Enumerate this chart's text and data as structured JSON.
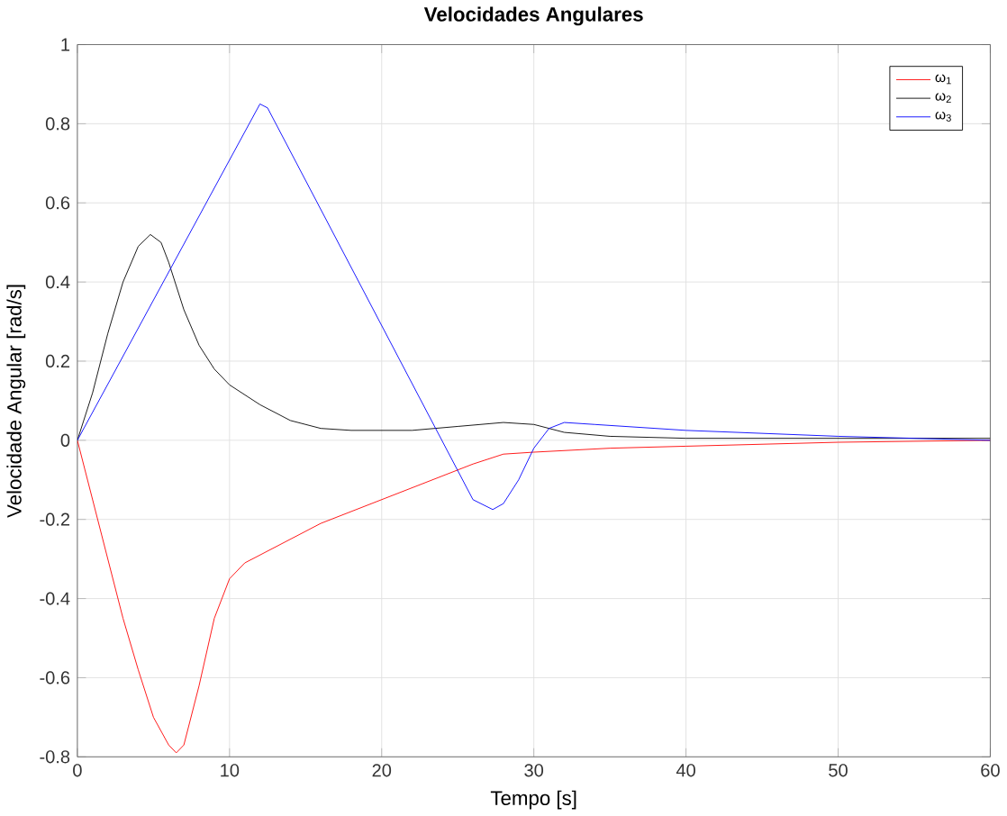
{
  "chart_data": {
    "type": "line",
    "title": "**Velocidades Angulares**",
    "xlabel": "Tempo [s]",
    "ylabel": "Velocidade Angular [rad/s]",
    "xlim": [
      0,
      60
    ],
    "ylim": [
      -0.8,
      1
    ],
    "xticks": [
      0,
      10,
      20,
      30,
      40,
      50,
      60
    ],
    "yticks": [
      -0.8,
      -0.6,
      -0.4,
      -0.2,
      0,
      0.2,
      0.4,
      0.6,
      0.8,
      1
    ],
    "grid": true,
    "legend": "top right",
    "series": [
      {
        "name": "ω$_{1}$",
        "color": "#ff0000",
        "x": [
          0,
          1,
          2,
          3,
          4,
          5,
          6,
          6.5,
          7,
          8,
          9,
          10,
          11,
          12,
          14,
          16,
          18,
          20,
          22,
          24,
          26,
          28,
          30,
          35,
          40,
          50,
          60
        ],
        "values": [
          0,
          -0.15,
          -0.3,
          -0.45,
          -0.58,
          -0.7,
          -0.77,
          -0.79,
          -0.77,
          -0.62,
          -0.45,
          -0.35,
          -0.31,
          -0.29,
          -0.25,
          -0.21,
          -0.18,
          -0.15,
          -0.12,
          -0.09,
          -0.06,
          -0.035,
          -0.03,
          -0.02,
          -0.015,
          -0.005,
          0
        ]
      },
      {
        "name": "ω$_{2}$",
        "color": "#000000",
        "x": [
          0,
          1,
          2,
          3,
          4,
          4.8,
          5.5,
          6,
          7,
          8,
          9,
          10,
          12,
          14,
          16,
          18,
          22,
          25,
          28,
          30,
          32,
          35,
          40,
          60
        ],
        "values": [
          0,
          0.12,
          0.27,
          0.4,
          0.49,
          0.52,
          0.5,
          0.45,
          0.33,
          0.24,
          0.18,
          0.14,
          0.09,
          0.05,
          0.03,
          0.025,
          0.025,
          0.035,
          0.045,
          0.04,
          0.02,
          0.01,
          0.005,
          0.005
        ]
      },
      {
        "name": "ω$_{3}$",
        "color": "#0000ff",
        "x": [
          0,
          12,
          12.5,
          26,
          27.3,
          28,
          29,
          30,
          31,
          32,
          34,
          40,
          50,
          60
        ],
        "values": [
          0,
          0.85,
          0.84,
          -0.15,
          -0.175,
          -0.16,
          -0.1,
          -0.02,
          0.03,
          0.045,
          0.04,
          0.025,
          0.01,
          0
        ]
      }
    ]
  }
}
